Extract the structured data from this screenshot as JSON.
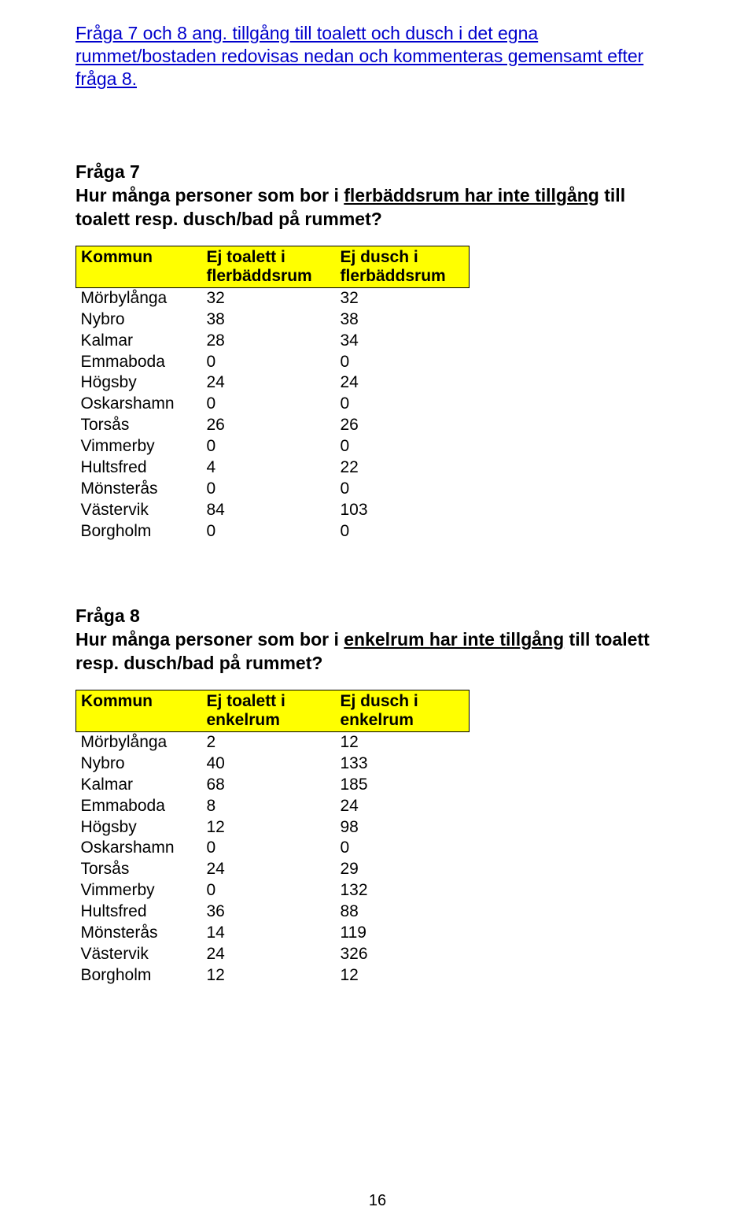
{
  "intro": {
    "text": "Fråga 7 och 8 ang. tillgång till toalett och dusch i det egna rummet/bostaden redovisas nedan och kommenteras gemensamt efter fråga 8.",
    "color": "#0000cc",
    "fontsize": 23
  },
  "q7": {
    "title": "Fråga 7",
    "text_before": "Hur många personer som bor i ",
    "text_underlined": "flerbäddsrum har inte tillgång",
    "text_after": " till toalett resp. dusch/bad på rummet?",
    "table": {
      "header_bg": "#ffff00",
      "columns": [
        "Kommun",
        "Ej toalett i\nflerbäddsrum",
        "Ej dusch i\nflerbäddsrum"
      ],
      "rows": [
        [
          "Mörbylånga",
          "32",
          "32"
        ],
        [
          "Nybro",
          "38",
          "38"
        ],
        [
          "Kalmar",
          "28",
          "34"
        ],
        [
          "Emmaboda",
          "0",
          "0"
        ],
        [
          "Högsby",
          "24",
          "24"
        ],
        [
          "Oskarshamn",
          "0",
          "0"
        ],
        [
          "Torsås",
          "26",
          "26"
        ],
        [
          "Vimmerby",
          "0",
          "0"
        ],
        [
          "Hultsfred",
          "4",
          "22"
        ],
        [
          "Mönsterås",
          "0",
          "0"
        ],
        [
          "Västervik",
          "84",
          "103"
        ],
        [
          "Borgholm",
          "0",
          "0"
        ]
      ]
    }
  },
  "q8": {
    "title": "Fråga 8",
    "text_before": "Hur många personer som bor i ",
    "text_underlined": "enkelrum har inte tillgång",
    "text_after": " till toalett resp. dusch/bad på rummet?",
    "table": {
      "header_bg": "#ffff00",
      "columns": [
        "Kommun",
        "Ej toalett i\nenkelrum",
        "Ej dusch i\nenkelrum"
      ],
      "rows": [
        [
          "Mörbylånga",
          "2",
          "12"
        ],
        [
          "Nybro",
          "40",
          "133"
        ],
        [
          "Kalmar",
          "68",
          "185"
        ],
        [
          "Emmaboda",
          "8",
          "24"
        ],
        [
          "Högsby",
          "12",
          "98"
        ],
        [
          "Oskarshamn",
          "0",
          "0"
        ],
        [
          "Torsås",
          "24",
          "29"
        ],
        [
          "Vimmerby",
          "0",
          "132"
        ],
        [
          "Hultsfred",
          "36",
          "88"
        ],
        [
          "Mönsterås",
          "14",
          "119"
        ],
        [
          "Västervik",
          "24",
          "326"
        ],
        [
          "Borgholm",
          "12",
          "12"
        ]
      ]
    }
  },
  "page_number": "16"
}
